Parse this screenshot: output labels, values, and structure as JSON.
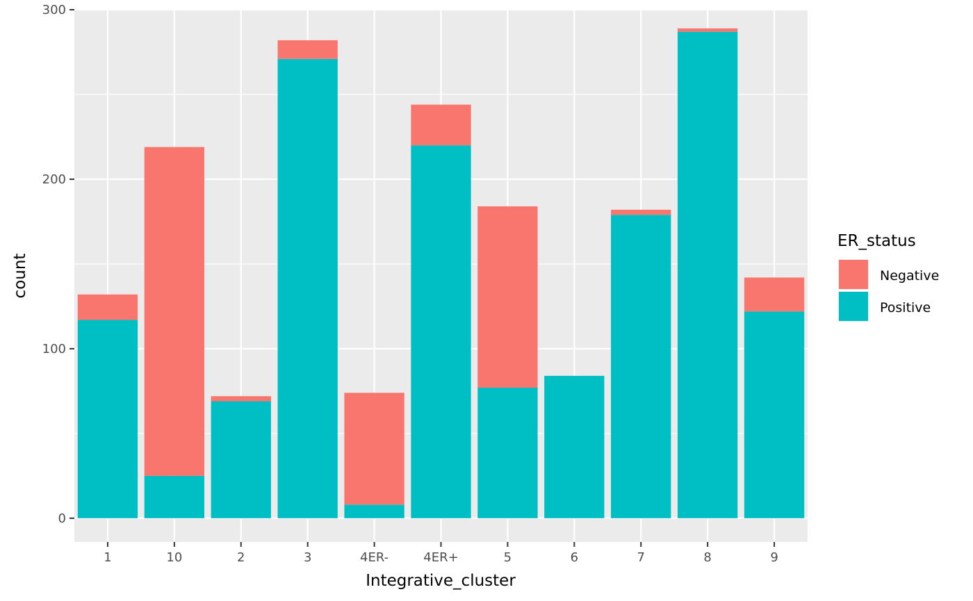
{
  "chart_data": {
    "type": "bar",
    "stacked": true,
    "xlabel": "Integrative_cluster",
    "ylabel": "count",
    "ylim": [
      -14,
      300
    ],
    "yticks": [
      0,
      100,
      200,
      300
    ],
    "categories": [
      "1",
      "10",
      "2",
      "3",
      "4ER-",
      "4ER+",
      "5",
      "6",
      "7",
      "8",
      "9"
    ],
    "series": [
      {
        "name": "Positive",
        "color": "#00BFC4",
        "values": [
          117,
          25,
          69,
          271,
          8,
          220,
          77,
          84,
          179,
          287,
          122
        ]
      },
      {
        "name": "Negative",
        "color": "#F8766D",
        "values": [
          15,
          194,
          3,
          11,
          66,
          24,
          107,
          0,
          3,
          2,
          20
        ]
      }
    ],
    "legend": {
      "title": "ER_status",
      "position": "right",
      "entries": [
        {
          "label": "Negative",
          "color": "#F8766D"
        },
        {
          "label": "Positive",
          "color": "#00BFC4"
        }
      ]
    },
    "grid": true,
    "panel_background": "#EBEBEB",
    "grid_color": "#FFFFFF"
  }
}
